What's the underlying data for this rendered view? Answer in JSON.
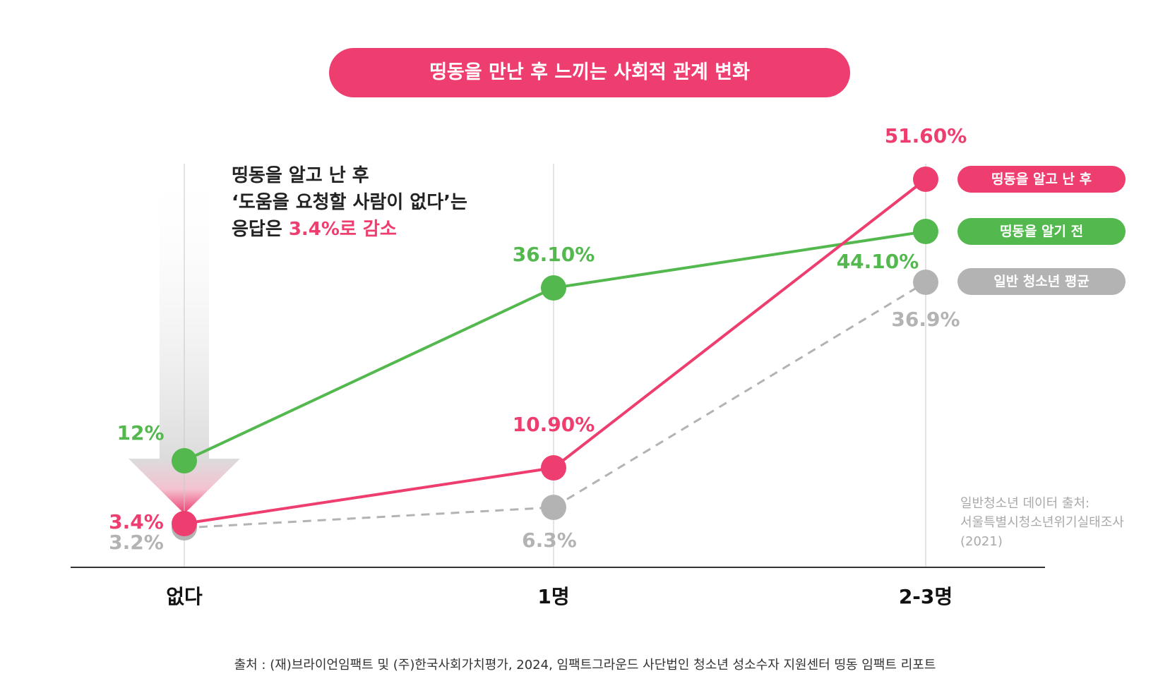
{
  "title": "띵동을 만난 후 느끼는 사회적 관계 변화",
  "annotation": {
    "line1": "띵동을 알고 난 후",
    "line2": "‘도움을 요청할 사람이 없다’는",
    "line3_prefix": "응답은 ",
    "line3_highlight": "3.4%로 감소"
  },
  "legend": [
    {
      "label": "띵동을 알고 난 후",
      "color": "#ee3e6f"
    },
    {
      "label": "띵동을 알기 전",
      "color": "#53b84e"
    },
    {
      "label": "일반 청소년 평균",
      "color": "#b3b3b3"
    }
  ],
  "note": {
    "line1": "일반청소년 데이터 출처:",
    "line2": "서울특별시청소년위기실태조사",
    "line3": "(2021)"
  },
  "source": "출처 : (재)브라이언임팩트 및 (주)한국사회가치평가, 2024, 임팩트그라운드 사단법인 청소년 성소수자 지원센터 띵동 임팩트 리포트",
  "chart_data": {
    "type": "line",
    "categories": [
      "없다",
      "1명",
      "2-3명"
    ],
    "series": [
      {
        "name": "띵동을 알고 난 후",
        "values": [
          3.4,
          10.9,
          51.6
        ],
        "labels": [
          "3.4%",
          "10.90%",
          "51.60%"
        ],
        "color": "#ee3e6f",
        "dashed": false
      },
      {
        "name": "띵동을 알기 전",
        "values": [
          12,
          36.1,
          44.1
        ],
        "labels": [
          "12%",
          "36.10%",
          "44.10%"
        ],
        "color": "#53b84e",
        "dashed": false
      },
      {
        "name": "일반 청소년 평균",
        "values": [
          3.2,
          6.3,
          36.9
        ],
        "labels": [
          "3.2%",
          "6.3%",
          "36.9%"
        ],
        "color": "#b3b3b3",
        "dashed": true
      }
    ],
    "ylim": [
      0,
      60
    ],
    "grid": false,
    "legend_position": "right"
  }
}
